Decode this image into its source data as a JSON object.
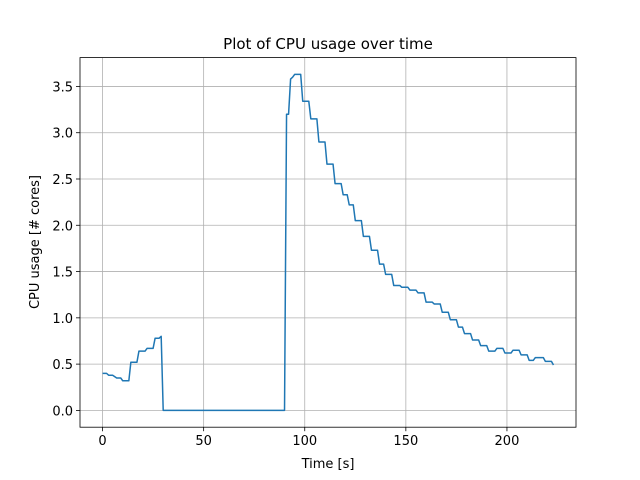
{
  "chart_data": {
    "type": "line",
    "title": "Plot of CPU usage over time",
    "xlabel": "Time [s]",
    "ylabel": "CPU usage [# cores]",
    "color": "#1f77b4",
    "grid": true,
    "xlim": [
      -11.15,
      234.15
    ],
    "ylim": [
      -0.1815,
      3.8115
    ],
    "xticks": [
      0,
      50,
      100,
      150,
      200
    ],
    "yticks": [
      {
        "value": 0,
        "label": "0.0"
      },
      0.5,
      {
        "value": 1,
        "label": "1.0"
      },
      1.5,
      {
        "value": 2,
        "label": "2.0"
      },
      2.5,
      {
        "value": 3,
        "label": "3.0"
      },
      3.5
    ],
    "x": [
      0,
      2,
      3,
      5,
      7,
      9,
      10,
      13,
      14,
      17,
      18,
      21,
      22,
      25,
      26,
      28,
      29,
      30,
      90,
      91,
      92,
      93,
      94,
      95,
      98,
      99,
      102,
      103,
      106,
      107,
      110,
      111,
      114,
      115,
      118,
      119,
      121,
      122,
      124,
      125,
      128,
      129,
      132,
      133,
      136,
      137,
      139,
      140,
      143,
      144,
      147,
      148,
      151,
      152,
      155,
      156,
      159,
      160,
      163,
      164,
      167,
      168,
      171,
      172,
      175,
      176,
      178,
      179,
      182,
      183,
      186,
      187,
      190,
      191,
      194,
      195,
      198,
      199,
      202,
      203,
      206,
      207,
      210,
      211,
      213,
      214,
      218,
      219,
      222,
      223
    ],
    "values": [
      0.4,
      0.4,
      0.38,
      0.38,
      0.35,
      0.35,
      0.32,
      0.32,
      0.52,
      0.52,
      0.64,
      0.64,
      0.67,
      0.67,
      0.78,
      0.78,
      0.8,
      0,
      0,
      3.2,
      3.2,
      3.58,
      3.6,
      3.63,
      3.63,
      3.34,
      3.34,
      3.15,
      3.15,
      2.9,
      2.9,
      2.66,
      2.66,
      2.45,
      2.45,
      2.33,
      2.33,
      2.22,
      2.22,
      2.05,
      2.05,
      1.88,
      1.88,
      1.73,
      1.73,
      1.58,
      1.58,
      1.47,
      1.47,
      1.35,
      1.35,
      1.33,
      1.33,
      1.3,
      1.3,
      1.27,
      1.27,
      1.17,
      1.17,
      1.15,
      1.15,
      1.06,
      1.06,
      0.98,
      0.98,
      0.9,
      0.9,
      0.83,
      0.83,
      0.76,
      0.76,
      0.7,
      0.7,
      0.64,
      0.64,
      0.67,
      0.67,
      0.62,
      0.62,
      0.65,
      0.65,
      0.6,
      0.6,
      0.54,
      0.54,
      0.57,
      0.57,
      0.53,
      0.53,
      0.49
    ]
  }
}
